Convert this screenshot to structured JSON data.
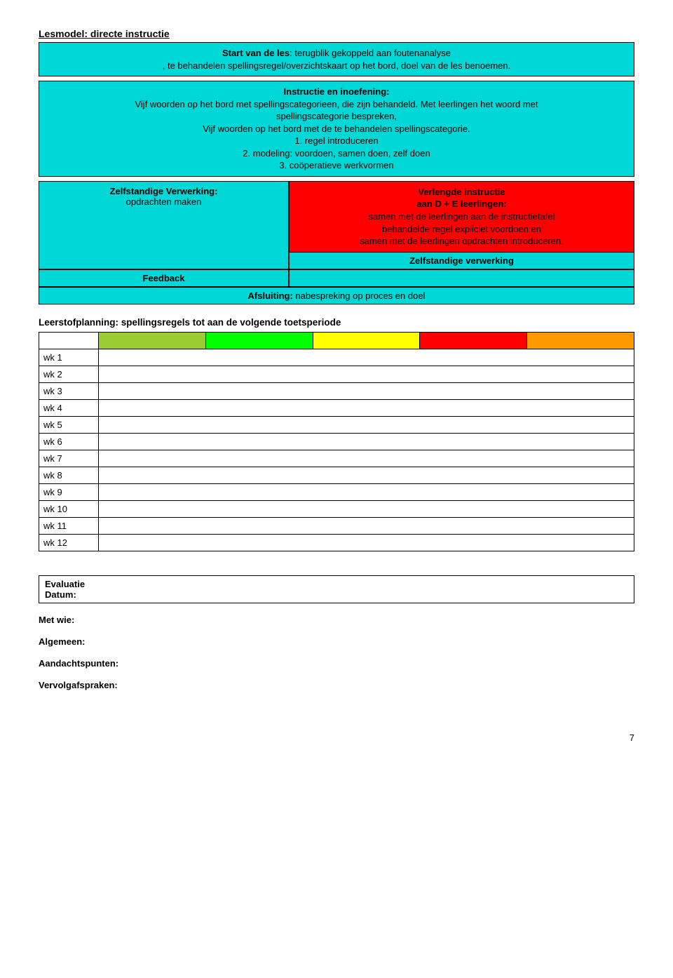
{
  "title": "Lesmodel: directe instructie",
  "box1": {
    "line1_bold": "Start van de les",
    "line1_rest": ": terugblik gekoppeld aan foutenanalyse",
    "line2": ", te behandelen spellingsregel/overzichtskaart op het bord, doel van de les benoemen."
  },
  "box2": {
    "heading": "Instructie en inoefening:",
    "l1": "Vijf woorden op het bord met spellingscategorieen, die zijn behandeld. Met leerlingen het woord met",
    "l2": "spellingscategorie bespreken,",
    "l3": "Vijf woorden op het bord met de te behandelen spellingscategorie.",
    "l4": "1. regel introduceren",
    "l5": "2. modeling: voordoen, samen doen, zelf doen",
    "l6": "3. coöperatieve werkvormen"
  },
  "left": {
    "heading": "Zelfstandige Verwerking:",
    "sub": "opdrachten maken"
  },
  "right_red": {
    "h1": "Verlengde instructie",
    "h2": "aan D + E leerlingen:",
    "l1": "samen met de leerlingen aan de instructietafel",
    "l2": "behandelde regel expliciet voordoen en",
    "l3": "samen met de leerlingen opdrachten introduceren."
  },
  "right_cyan": "Zelfstandige verwerking",
  "feedback": "Feedback",
  "afsluiting_bold": "Afsluiting:",
  "afsluiting_rest": " nabespreking op proces en doel",
  "planning_title": "Leerstofplanning: spellingsregels tot aan de volgende toetsperiode",
  "planning_colors": [
    "#9acd32",
    "#00ff00",
    "#ffff00",
    "#ff0000",
    "#ff9900"
  ],
  "weeks": [
    "wk 1",
    "wk 2",
    "wk 3",
    "wk 4",
    "wk 5",
    "wk 6",
    "wk 7",
    "wk 8",
    "wk 9",
    "wk 10",
    "wk 11",
    "wk 12"
  ],
  "eval": {
    "heading": "Evaluatie",
    "datum": "Datum:",
    "metwie": "Met wie:",
    "algemeen": "Algemeen:",
    "aandacht": "Aandachtspunten:",
    "vervolg": "Vervolgafspraken:"
  },
  "page": "7"
}
